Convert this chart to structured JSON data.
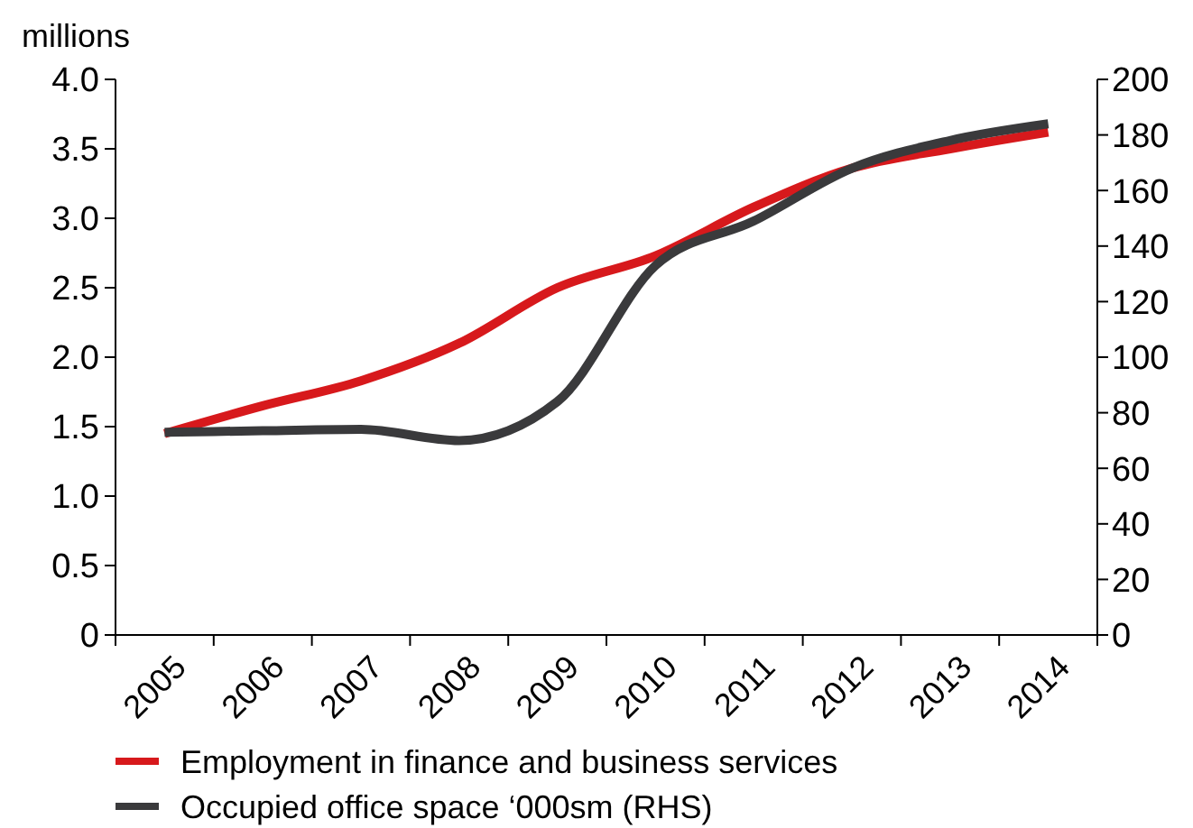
{
  "chart_data": {
    "type": "line",
    "ylabel": "millions",
    "categories": [
      "2005",
      "2006",
      "2007",
      "2008",
      "2009",
      "2010",
      "2011",
      "2012",
      "2013",
      "2014"
    ],
    "series": [
      {
        "name": "Employment in finance and business services",
        "color": "#d7191c",
        "values": [
          1.45,
          1.65,
          1.83,
          2.1,
          2.5,
          2.73,
          3.08,
          3.36,
          3.5,
          3.62
        ]
      },
      {
        "name": "Occupied office space ‘000sm (RHS)",
        "color": "#3a3a3c",
        "axis": "y2",
        "values": [
          73,
          73.5,
          74,
          70,
          84,
          133,
          149,
          168,
          178,
          184
        ]
      }
    ],
    "ylim": [
      0,
      4
    ],
    "yticks": [
      0,
      {
        "value": 0.5,
        "label": "0.5"
      },
      {
        "value": 1,
        "label": "1.0"
      },
      {
        "value": 1.5,
        "label": "1.5"
      },
      {
        "value": 2,
        "label": "2.0"
      },
      {
        "value": 2.5,
        "label": "2.5"
      },
      {
        "value": 3,
        "label": "3.0"
      },
      {
        "value": 3.5,
        "label": "3.5"
      },
      {
        "value": 4,
        "label": "4.0"
      }
    ],
    "y2lim": [
      0,
      200
    ],
    "y2ticks": [
      0,
      20,
      40,
      60,
      80,
      100,
      120,
      140,
      160,
      180,
      200
    ],
    "grid": false,
    "legend": "bottom",
    "marker": "none",
    "line_style": "solid"
  }
}
